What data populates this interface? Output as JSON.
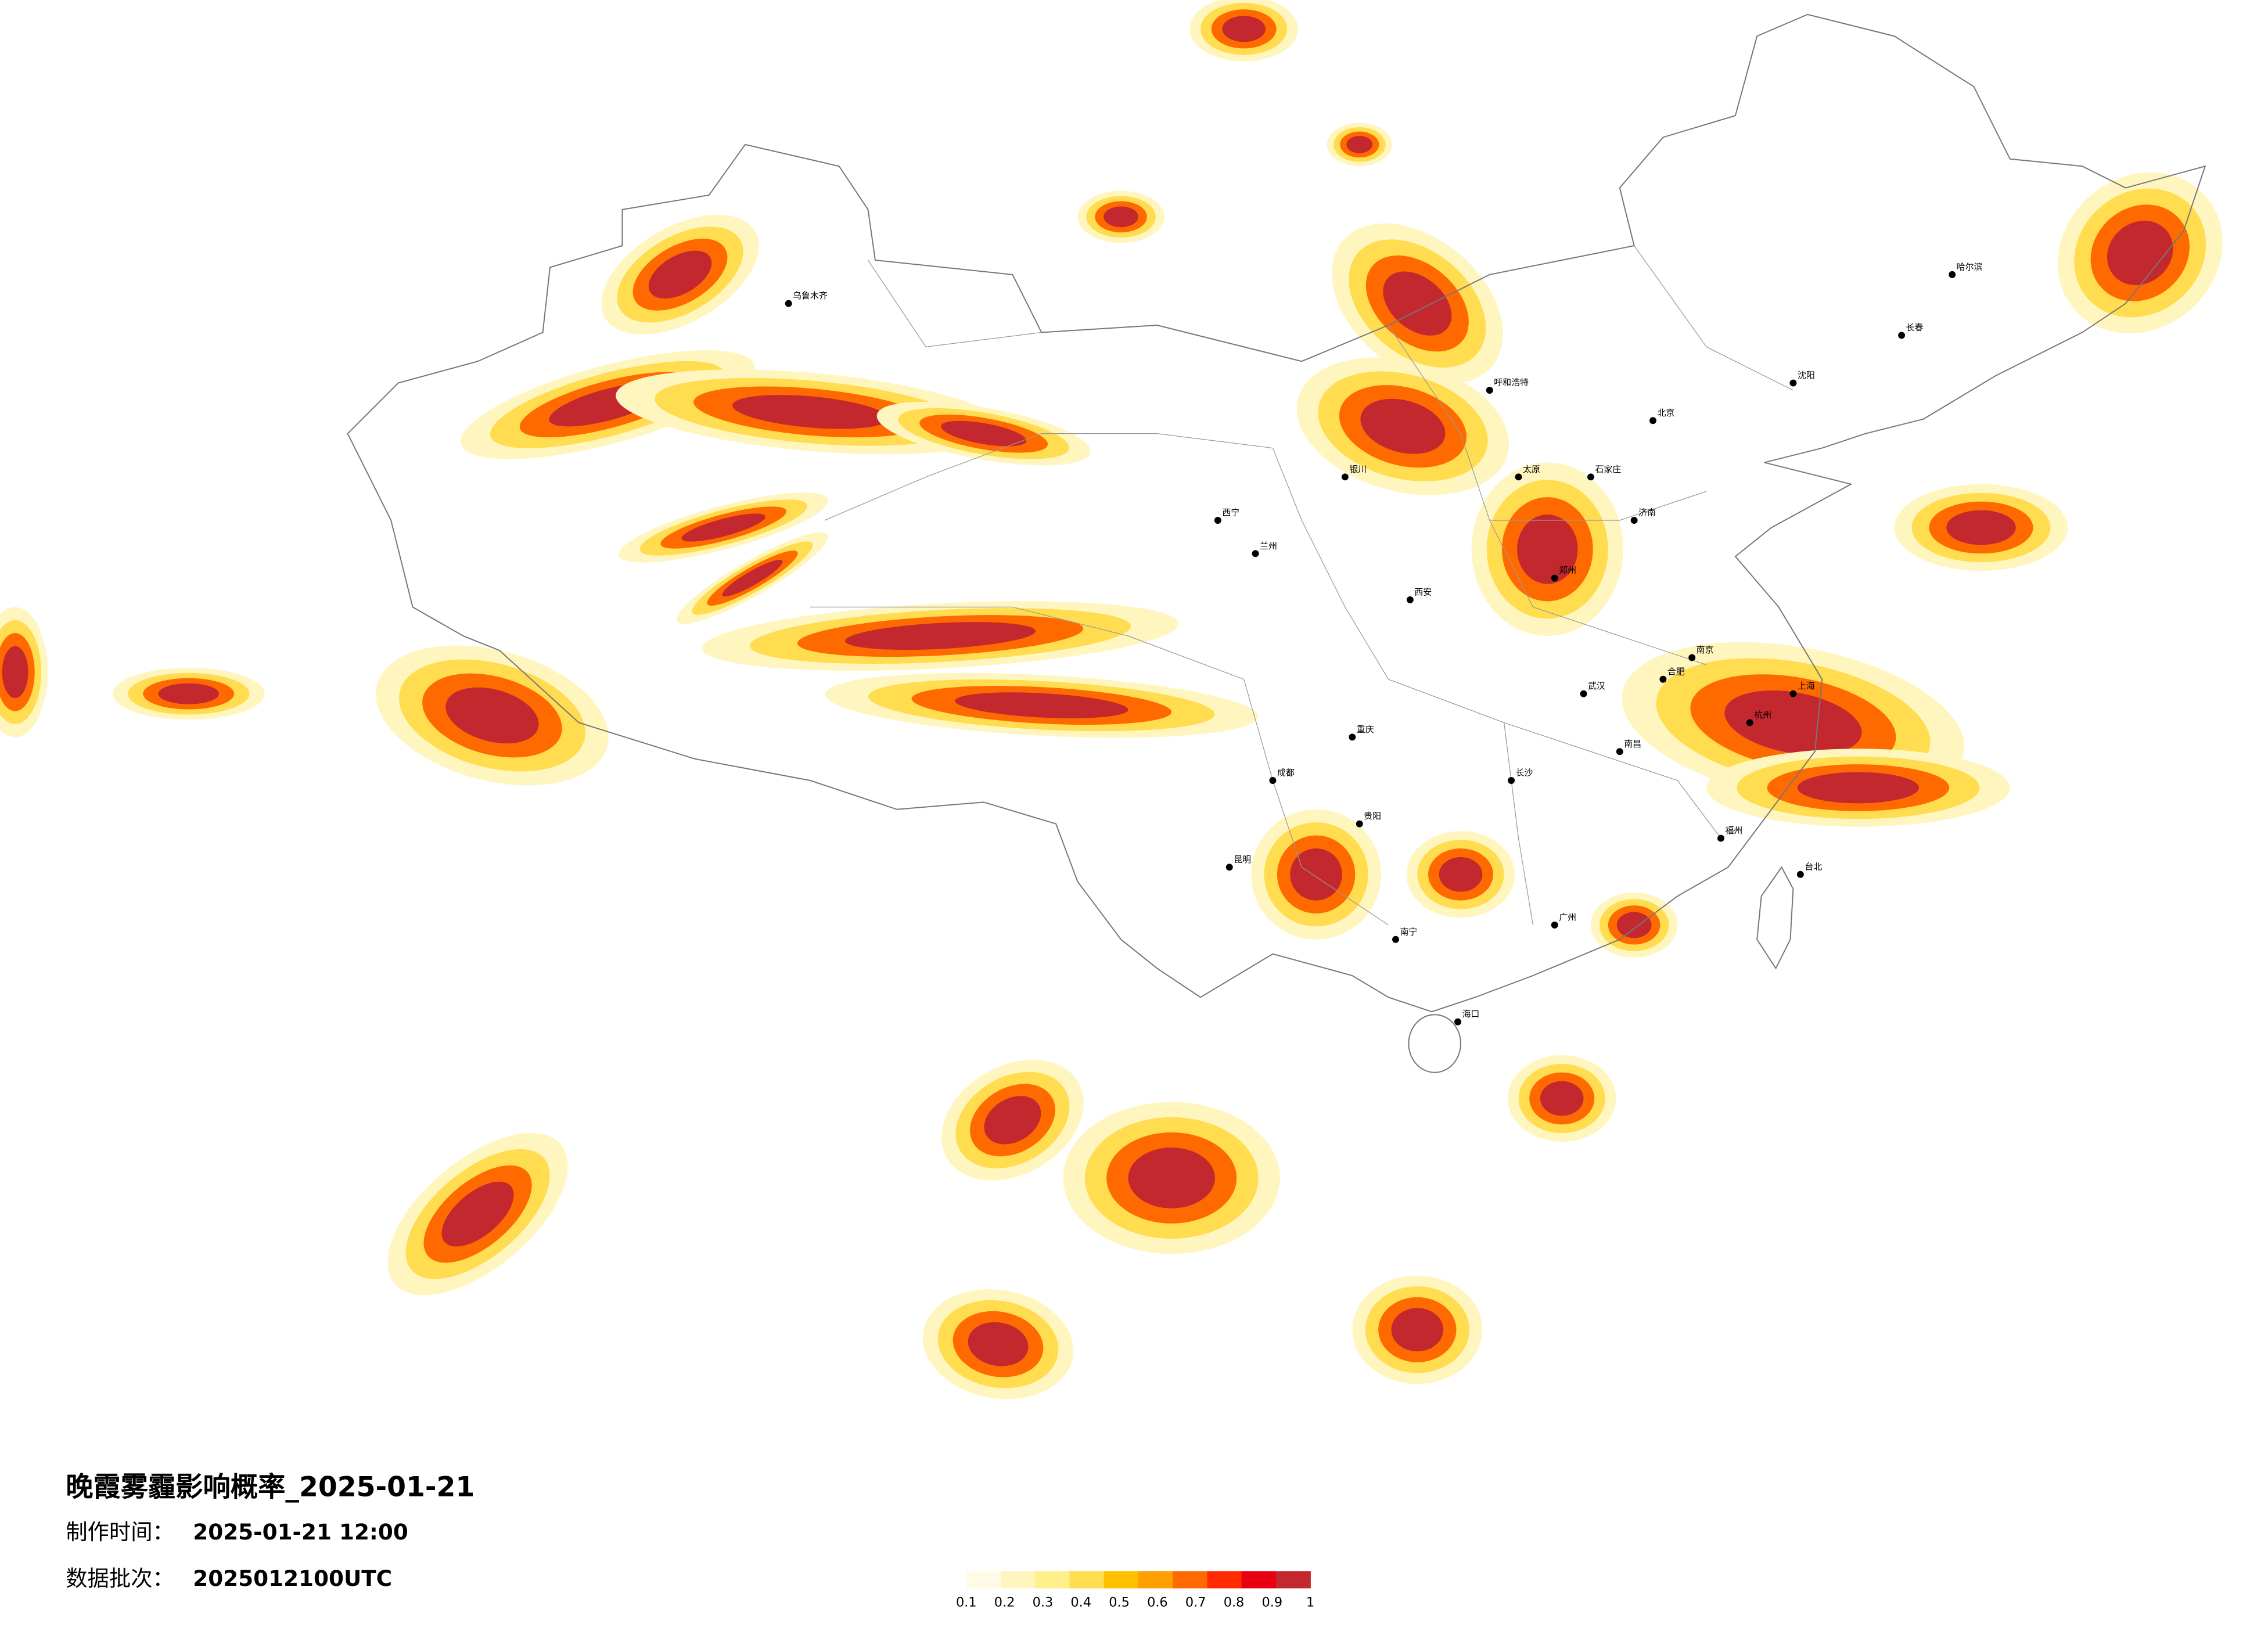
{
  "header": {
    "title": "晚霞雾霾影响概率_2025-01-21",
    "production_label": "制作时间：",
    "production_time": "2025-01-21 12:00",
    "batch_label": "数据批次：",
    "batch": "2025012100UTC"
  },
  "legend": {
    "colors": [
      "#fffbe6",
      "#fff6bf",
      "#ffef8a",
      "#ffdc50",
      "#ffc000",
      "#ff9f00",
      "#ff6a00",
      "#ff2a00",
      "#e60012",
      "#c3282f"
    ],
    "ticks": [
      0.1,
      0.2,
      0.3,
      0.4,
      0.5,
      0.6,
      0.7,
      0.8,
      0.9,
      1
    ]
  },
  "cities": [
    "乌鲁木齐",
    "西宁",
    "兰州",
    "成都",
    "重庆",
    "贵阳",
    "昆明",
    "南宁",
    "广州",
    "长沙",
    "武汉",
    "南京",
    "上海",
    "济南",
    "郑州",
    "西安",
    "太原",
    "呼和浩特",
    "北京",
    "沈阳",
    "长春",
    "哈尔滨",
    "海口",
    "台北",
    "福州",
    "石家庄",
    "银川",
    "合肥",
    "南昌",
    "杭州"
  ]
}
